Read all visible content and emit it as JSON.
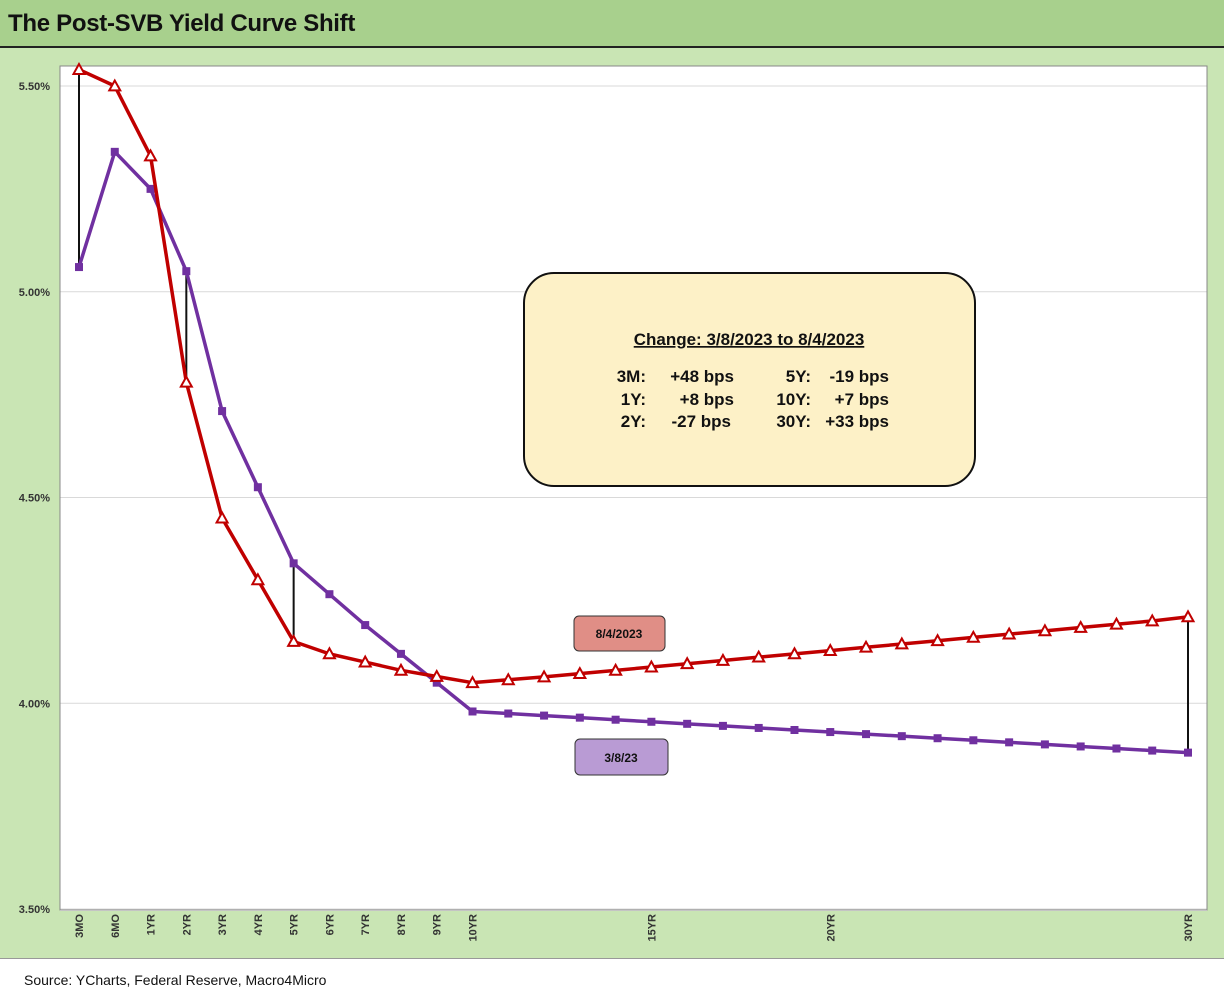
{
  "title": "The Post-SVB Yield Curve Shift",
  "source": "Source: YCharts, Federal Reserve, Macro4Micro",
  "colors": {
    "series_2023_08_04": "#c00000",
    "series_2023_03_08": "#7030a0",
    "label_box_aug": "#e08e86",
    "label_box_mar": "#b99bd4",
    "summary_box": "#fdf1c7",
    "title_bar": "#a8d08d",
    "frame": "#c9e5b4"
  },
  "summary_box": {
    "heading": "Change: 3/8/2023 to 8/4/2023",
    "rows": [
      {
        "l_key": "3M:",
        "l_val": "+48 bps",
        "r_key": "5Y:",
        "r_val": "-19 bps"
      },
      {
        "l_key": "1Y:",
        "l_val": "+8 bps",
        "r_key": "10Y:",
        "r_val": "+7 bps"
      },
      {
        "l_key": "2Y:",
        "l_val": "-27 bps",
        "r_key": "30Y:",
        "r_val": "+33 bps"
      }
    ]
  },
  "chart_data": {
    "type": "line",
    "title": "The Post-SVB Yield Curve Shift",
    "ylim": [
      3.5,
      5.6
    ],
    "yticks": [
      3.5,
      4.0,
      4.5,
      5.0,
      5.5
    ],
    "ytick_labels": [
      "3.50%",
      "4.00%",
      "4.50%",
      "5.00%",
      "5.50%"
    ],
    "x": [
      0.25,
      0.5,
      1,
      2,
      3,
      4,
      5,
      6,
      7,
      8,
      9,
      10,
      11,
      12,
      13,
      14,
      15,
      16,
      17,
      18,
      19,
      20,
      21,
      22,
      23,
      24,
      25,
      26,
      27,
      28,
      29,
      30
    ],
    "x_labeled_ticks": [
      {
        "pos": 0,
        "label": "3MO"
      },
      {
        "pos": 1,
        "label": "6MO"
      },
      {
        "pos": 2,
        "label": "1YR"
      },
      {
        "pos": 3,
        "label": "2YR"
      },
      {
        "pos": 4,
        "label": "3YR"
      },
      {
        "pos": 5,
        "label": "4YR"
      },
      {
        "pos": 6,
        "label": "5YR"
      },
      {
        "pos": 7,
        "label": "6YR"
      },
      {
        "pos": 8,
        "label": "7YR"
      },
      {
        "pos": 9,
        "label": "8YR"
      },
      {
        "pos": 10,
        "label": "9YR"
      },
      {
        "pos": 11,
        "label": "10YR"
      },
      {
        "pos": 16,
        "label": "15YR"
      },
      {
        "pos": 21,
        "label": "20YR"
      },
      {
        "pos": 31,
        "label": "30YR"
      }
    ],
    "series": [
      {
        "name": "8/4/2023",
        "marker": "triangle",
        "values": [
          5.54,
          5.5,
          5.33,
          4.78,
          4.45,
          4.3,
          4.15,
          4.12,
          4.1,
          4.08,
          4.065,
          4.05,
          4.057,
          4.064,
          4.072,
          4.08,
          4.088,
          4.096,
          4.104,
          4.112,
          4.12,
          4.128,
          4.136,
          4.144,
          4.152,
          4.16,
          4.168,
          4.176,
          4.184,
          4.192,
          4.2,
          4.21
        ]
      },
      {
        "name": "3/8/23",
        "marker": "square",
        "values": [
          5.06,
          5.34,
          5.25,
          5.05,
          4.71,
          4.525,
          4.34,
          4.265,
          4.19,
          4.12,
          4.05,
          3.98,
          3.975,
          3.97,
          3.965,
          3.96,
          3.955,
          3.95,
          3.945,
          3.94,
          3.935,
          3.93,
          3.925,
          3.92,
          3.915,
          3.91,
          3.905,
          3.9,
          3.895,
          3.89,
          3.885,
          3.88
        ]
      }
    ],
    "change_connectors": [
      0,
      3,
      6,
      31
    ],
    "series_labels": [
      "8/4/2023",
      "3/8/23"
    ]
  }
}
